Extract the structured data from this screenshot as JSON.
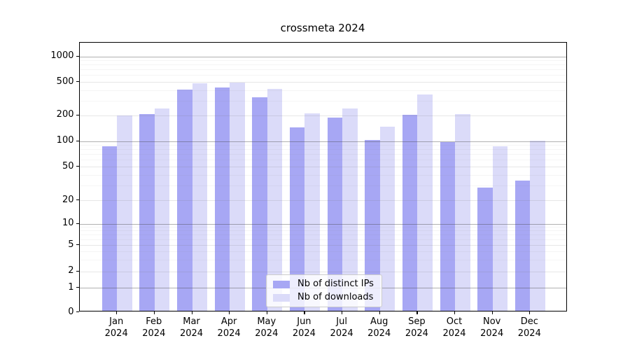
{
  "figure": {
    "title": "crossmeta 2024"
  },
  "legend": {
    "items": [
      {
        "label": "Nb of distinct IPs",
        "color": "#a7a7f4"
      },
      {
        "label": "Nb of downloads",
        "color": "#dbdbf9"
      }
    ]
  },
  "axes": {
    "x_months": [
      "Jan",
      "Feb",
      "Mar",
      "Apr",
      "May",
      "Jun",
      "Jul",
      "Aug",
      "Sep",
      "Oct",
      "Nov",
      "Dec"
    ],
    "x_year": "2024",
    "y_tick_labels": [
      "0",
      "1",
      "2",
      "5",
      "10",
      "20",
      "50",
      "100",
      "200",
      "500",
      "1000"
    ]
  },
  "chart_data": {
    "type": "bar",
    "title": "crossmeta 2024",
    "categories": [
      "Jan 2024",
      "Feb 2024",
      "Mar 2024",
      "Apr 2024",
      "May 2024",
      "Jun 2024",
      "Jul 2024",
      "Aug 2024",
      "Sep 2024",
      "Oct 2024",
      "Nov 2024",
      "Dec 2024"
    ],
    "series": [
      {
        "name": "Nb of distinct IPs",
        "color": "#a7a7f4",
        "values": [
          84,
          200,
          390,
          413,
          313,
          139,
          180,
          100,
          194,
          94,
          27,
          33
        ]
      },
      {
        "name": "Nb of downloads",
        "color": "#dbdbf9",
        "values": [
          192,
          233,
          462,
          475,
          400,
          201,
          230,
          142,
          338,
          200,
          83,
          97
        ]
      }
    ],
    "xlabel": "",
    "ylabel": "",
    "yscale": "symlog",
    "yticks": [
      0,
      1,
      2,
      5,
      10,
      20,
      50,
      100,
      200,
      500,
      1000
    ],
    "ylim": [
      0,
      1450
    ],
    "xlim_units": [
      -1,
      12
    ],
    "grid": true,
    "legend_position": "lower center",
    "bar_group": "paired: distinct-IPs bar left of tick, downloads bar right of tick"
  }
}
